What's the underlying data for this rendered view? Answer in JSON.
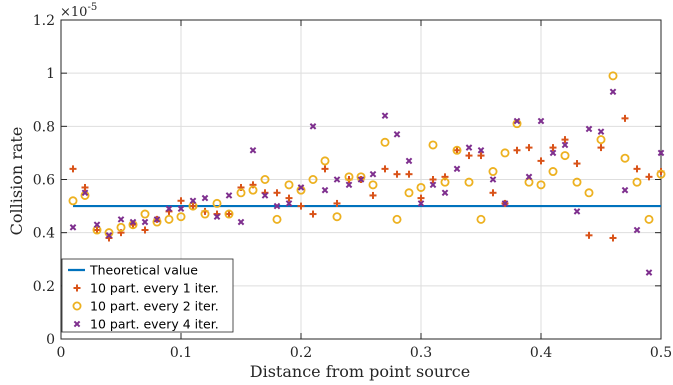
{
  "chart_data": {
    "type": "scatter",
    "xlabel": "Distance from point source",
    "ylabel": "Collision rate",
    "y_exponent": "×10",
    "y_exponent_power": "-5",
    "xlim": [
      0,
      0.5
    ],
    "ylim": [
      0,
      1.2
    ],
    "x_ticks": [
      "0",
      "0.1",
      "0.2",
      "0.3",
      "0.4",
      "0.5"
    ],
    "x_tick_values": [
      0,
      0.1,
      0.2,
      0.3,
      0.4,
      0.5
    ],
    "y_ticks": [
      "0",
      "0.2",
      "0.4",
      "0.6",
      "0.8",
      "1",
      "1.2"
    ],
    "y_tick_values": [
      0,
      0.2,
      0.4,
      0.6,
      0.8,
      1.0,
      1.2
    ],
    "grid": true,
    "legend_position": "bottom-left",
    "series": [
      {
        "name": "Theoretical value",
        "kind": "line",
        "color": "#0072BD",
        "x": [
          0.01,
          0.5
        ],
        "y": [
          0.5,
          0.5
        ]
      },
      {
        "name": "10 part. every 1 iter.",
        "kind": "plus",
        "color": "#D95319",
        "x": [
          0.01,
          0.02,
          0.03,
          0.04,
          0.05,
          0.06,
          0.07,
          0.08,
          0.09,
          0.1,
          0.11,
          0.12,
          0.13,
          0.14,
          0.15,
          0.16,
          0.17,
          0.18,
          0.19,
          0.2,
          0.21,
          0.22,
          0.23,
          0.24,
          0.25,
          0.26,
          0.27,
          0.28,
          0.29,
          0.3,
          0.31,
          0.32,
          0.33,
          0.34,
          0.35,
          0.36,
          0.37,
          0.38,
          0.39,
          0.4,
          0.41,
          0.42,
          0.43,
          0.44,
          0.45,
          0.46,
          0.47,
          0.48,
          0.49,
          0.5
        ],
        "y": [
          0.64,
          0.57,
          0.41,
          0.38,
          0.4,
          0.43,
          0.41,
          0.45,
          0.48,
          0.52,
          0.5,
          0.48,
          0.47,
          0.47,
          0.57,
          0.58,
          0.55,
          0.55,
          0.53,
          0.5,
          0.47,
          0.64,
          0.51,
          0.6,
          0.6,
          0.54,
          0.64,
          0.62,
          0.62,
          0.53,
          0.6,
          0.61,
          0.71,
          0.69,
          0.69,
          0.55,
          0.51,
          0.71,
          0.72,
          0.67,
          0.72,
          0.75,
          0.66,
          0.39,
          0.72,
          0.38,
          0.83,
          0.64,
          0.61,
          0.63
        ]
      },
      {
        "name": "10 part. every 2 iter.",
        "kind": "circle",
        "color": "#EDB120",
        "x": [
          0.01,
          0.02,
          0.03,
          0.04,
          0.05,
          0.06,
          0.07,
          0.08,
          0.09,
          0.1,
          0.11,
          0.12,
          0.13,
          0.14,
          0.15,
          0.16,
          0.17,
          0.18,
          0.19,
          0.2,
          0.21,
          0.22,
          0.23,
          0.24,
          0.25,
          0.26,
          0.27,
          0.28,
          0.29,
          0.3,
          0.31,
          0.32,
          0.33,
          0.34,
          0.35,
          0.36,
          0.37,
          0.38,
          0.39,
          0.4,
          0.41,
          0.42,
          0.43,
          0.44,
          0.45,
          0.46,
          0.47,
          0.48,
          0.49,
          0.5
        ],
        "y": [
          0.52,
          0.54,
          0.41,
          0.4,
          0.42,
          0.43,
          0.47,
          0.44,
          0.45,
          0.46,
          0.5,
          0.47,
          0.51,
          0.47,
          0.55,
          0.56,
          0.6,
          0.45,
          0.58,
          0.56,
          0.6,
          0.67,
          0.46,
          0.61,
          0.61,
          0.58,
          0.74,
          0.45,
          0.55,
          0.57,
          0.73,
          0.59,
          0.71,
          0.59,
          0.45,
          0.63,
          0.7,
          0.81,
          0.59,
          0.58,
          0.63,
          0.69,
          0.59,
          0.55,
          0.75,
          0.99,
          0.68,
          0.59,
          0.45,
          0.62
        ]
      },
      {
        "name": "10 part. every 4 iter.",
        "kind": "cross",
        "color": "#7E2F8E",
        "x": [
          0.01,
          0.02,
          0.03,
          0.04,
          0.05,
          0.06,
          0.07,
          0.08,
          0.09,
          0.1,
          0.11,
          0.12,
          0.13,
          0.14,
          0.15,
          0.16,
          0.17,
          0.18,
          0.19,
          0.2,
          0.21,
          0.22,
          0.23,
          0.24,
          0.25,
          0.26,
          0.27,
          0.28,
          0.29,
          0.3,
          0.31,
          0.32,
          0.33,
          0.34,
          0.35,
          0.36,
          0.37,
          0.38,
          0.39,
          0.4,
          0.41,
          0.42,
          0.43,
          0.44,
          0.45,
          0.46,
          0.47,
          0.48,
          0.49,
          0.5
        ],
        "y": [
          0.42,
          0.55,
          0.43,
          0.39,
          0.45,
          0.44,
          0.44,
          0.45,
          0.49,
          0.49,
          0.52,
          0.53,
          0.46,
          0.54,
          0.44,
          0.71,
          0.54,
          0.5,
          0.51,
          0.57,
          0.8,
          0.56,
          0.6,
          0.58,
          0.6,
          0.62,
          0.84,
          0.77,
          0.67,
          0.51,
          0.58,
          0.55,
          0.64,
          0.72,
          0.71,
          0.6,
          0.51,
          0.82,
          0.61,
          0.82,
          0.7,
          0.73,
          0.48,
          0.79,
          0.78,
          0.93,
          0.56,
          0.41,
          0.25,
          0.7
        ]
      }
    ]
  }
}
